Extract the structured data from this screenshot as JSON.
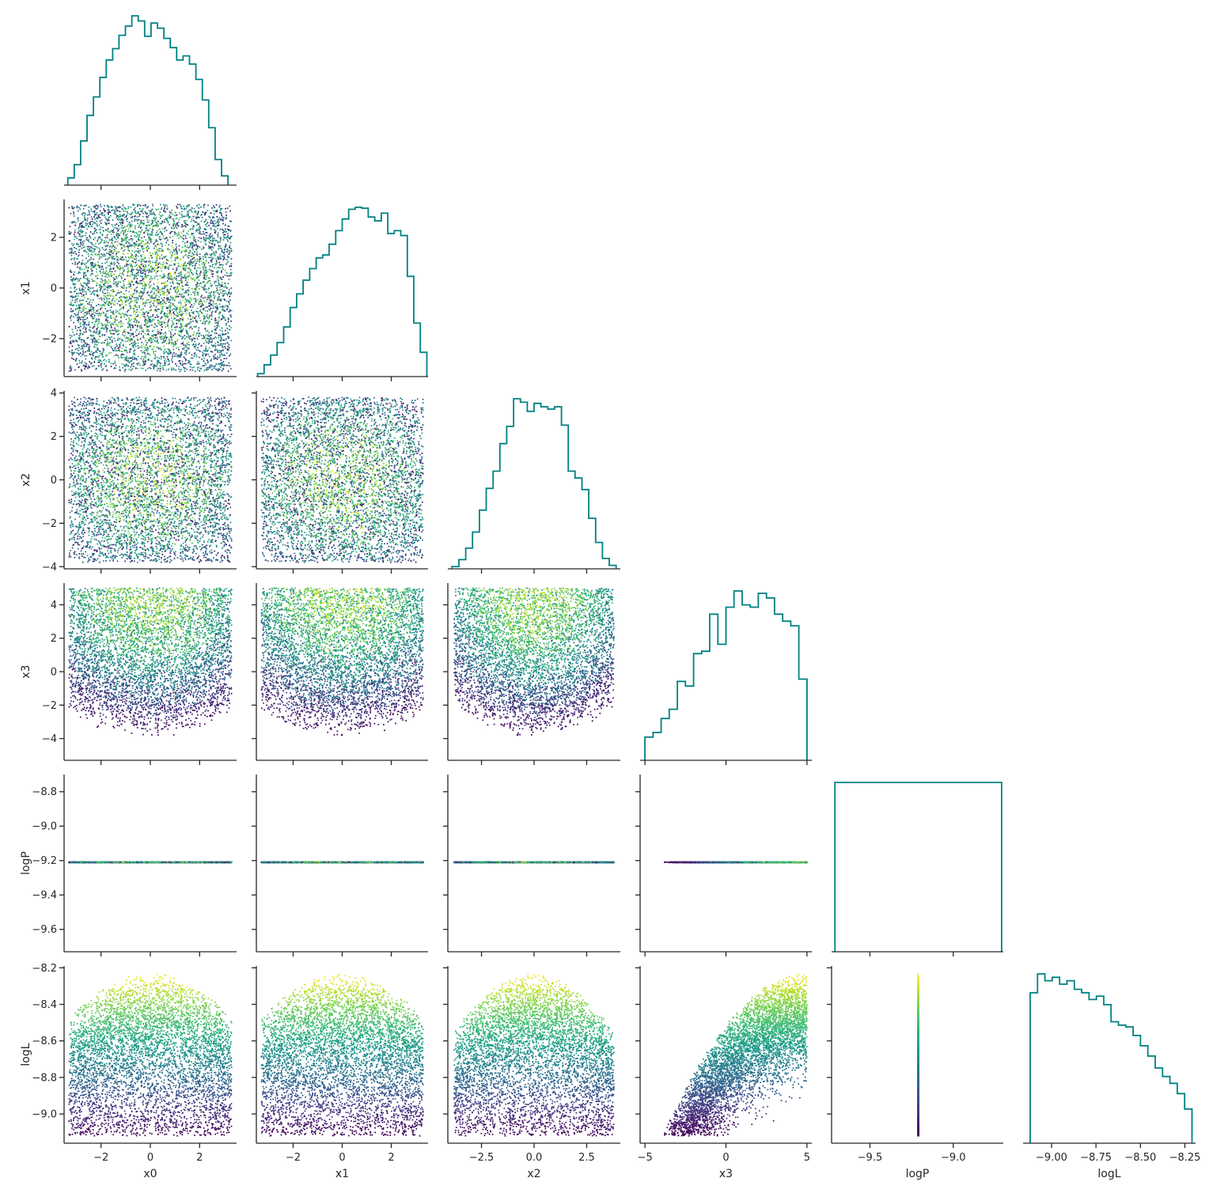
{
  "chart_data": {
    "type": "pairplot",
    "variables": [
      "x0",
      "x1",
      "x2",
      "x3",
      "logP",
      "logL"
    ],
    "diagonal": "histogram (step)",
    "offdiagonal": "scatter colored by logL",
    "colormap": "viridis",
    "colors": {
      "histogram": "#008080",
      "axis": "#262626",
      "background": "#ffffff"
    },
    "grid": false,
    "n_samples": 5000,
    "ranges": {
      "x0": [
        -3.5,
        3.5
      ],
      "x1": [
        -3.5,
        3.5
      ],
      "x2": [
        -4.1,
        4.1
      ],
      "x3": [
        -5.3,
        5.3
      ],
      "logP": [
        -9.73,
        -8.7
      ],
      "logL": [
        -9.16,
        -8.19
      ]
    },
    "ticks": {
      "x0": [
        -2,
        0,
        2
      ],
      "x1": [
        -2,
        0,
        2
      ],
      "x2": [
        -2.5,
        0.0,
        2.5
      ],
      "x3": [
        -5,
        0,
        5
      ],
      "logP": [
        -9.5,
        -9.0
      ],
      "logL": [
        -9.0,
        -8.75,
        -8.5,
        -8.25
      ]
    },
    "yticks": {
      "x1": [
        -2,
        0,
        2
      ],
      "x2": [
        -4,
        -2,
        0,
        2,
        4
      ],
      "x3": [
        -4,
        -2,
        0,
        2,
        4
      ],
      "logP": [
        -9.6,
        -9.4,
        -9.2,
        -9.0,
        -8.8
      ],
      "logL": [
        -9.0,
        -8.8,
        -8.6,
        -8.4,
        -8.2
      ]
    },
    "tick_labels": {
      "x0": [
        "−2",
        "0",
        "2"
      ],
      "x1": [
        "−2",
        "0",
        "2"
      ],
      "x2": [
        "−2.5",
        "0.0",
        "2.5"
      ],
      "x3": [
        "−5",
        "0",
        "5"
      ],
      "logP": [
        "−9.5",
        "−9.0"
      ],
      "logL": [
        "−9.00",
        "−8.75",
        "−8.50",
        "−8.25"
      ]
    },
    "ytick_labels": {
      "x1": [
        "−2",
        "0",
        "2"
      ],
      "x2": [
        "−4",
        "−2",
        "0",
        "2",
        "4"
      ],
      "x3": [
        "−4",
        "−2",
        "0",
        "2",
        "4"
      ],
      "logP": [
        "−9.6",
        "−9.4",
        "−9.2",
        "−9.0",
        "−8.8"
      ],
      "logL": [
        "−9.0",
        "−8.8",
        "−8.6",
        "−8.4",
        "−8.2"
      ]
    },
    "axis_labels": {
      "x0": "x0",
      "x1": "x1",
      "x2": "x2",
      "x3": "x3",
      "logP": "logP",
      "logL": "logL"
    },
    "logP_constant": -9.21,
    "histograms": {
      "x0": {
        "edges": [
          -3.35,
          3.15
        ],
        "counts": [
          0.7,
          2.0,
          4.3,
          6.8,
          8.6,
          10.5,
          12.2,
          13.3,
          14.6,
          15.5,
          16.5,
          16.0,
          14.5,
          15.8,
          15.3,
          14.3,
          13.4,
          12.2,
          12.6,
          11.8,
          10.3,
          8.3,
          5.6,
          2.5,
          0.9
        ]
      },
      "x1": {
        "edges": [
          -3.45,
          3.45
        ],
        "counts": [
          0.3,
          1.2,
          2.2,
          3.5,
          5.1,
          7.1,
          8.5,
          9.9,
          11.1,
          12.2,
          12.5,
          13.6,
          15.0,
          16.2,
          17.2,
          17.4,
          17.3,
          16.4,
          16.0,
          16.8,
          14.7,
          15.0,
          14.5,
          10.3,
          5.5,
          2.5
        ]
      },
      "x2": {
        "edges": [
          -3.9,
          3.9
        ],
        "counts": [
          0.2,
          0.8,
          1.8,
          3.2,
          5.1,
          7.0,
          8.5,
          10.9,
          12.4,
          14.8,
          14.5,
          13.7,
          14.4,
          14.1,
          13.9,
          14.1,
          12.5,
          8.5,
          7.9,
          6.9,
          4.4,
          2.3,
          0.9,
          0.3
        ]
      },
      "x3": {
        "edges": [
          -5.0,
          5.0
        ],
        "counts": [
          1.0,
          1.2,
          1.8,
          2.2,
          3.4,
          3.2,
          4.6,
          4.7,
          6.3,
          5.0,
          6.6,
          7.3,
          6.7,
          6.6,
          7.2,
          7.0,
          6.3,
          6.0,
          5.8,
          3.5
        ]
      },
      "logP": {
        "edges": [
          -9.71,
          -8.71
        ],
        "counts": [
          1.0
        ]
      },
      "logL": {
        "edges": [
          -9.12,
          -8.21
        ],
        "counts": [
          8.8,
          9.9,
          9.5,
          9.7,
          9.3,
          9.5,
          9.0,
          8.8,
          8.4,
          8.6,
          8.1,
          7.1,
          6.9,
          6.8,
          6.3,
          5.7,
          5.1,
          4.4,
          3.9,
          3.5,
          2.9,
          2.0
        ]
      }
    }
  }
}
